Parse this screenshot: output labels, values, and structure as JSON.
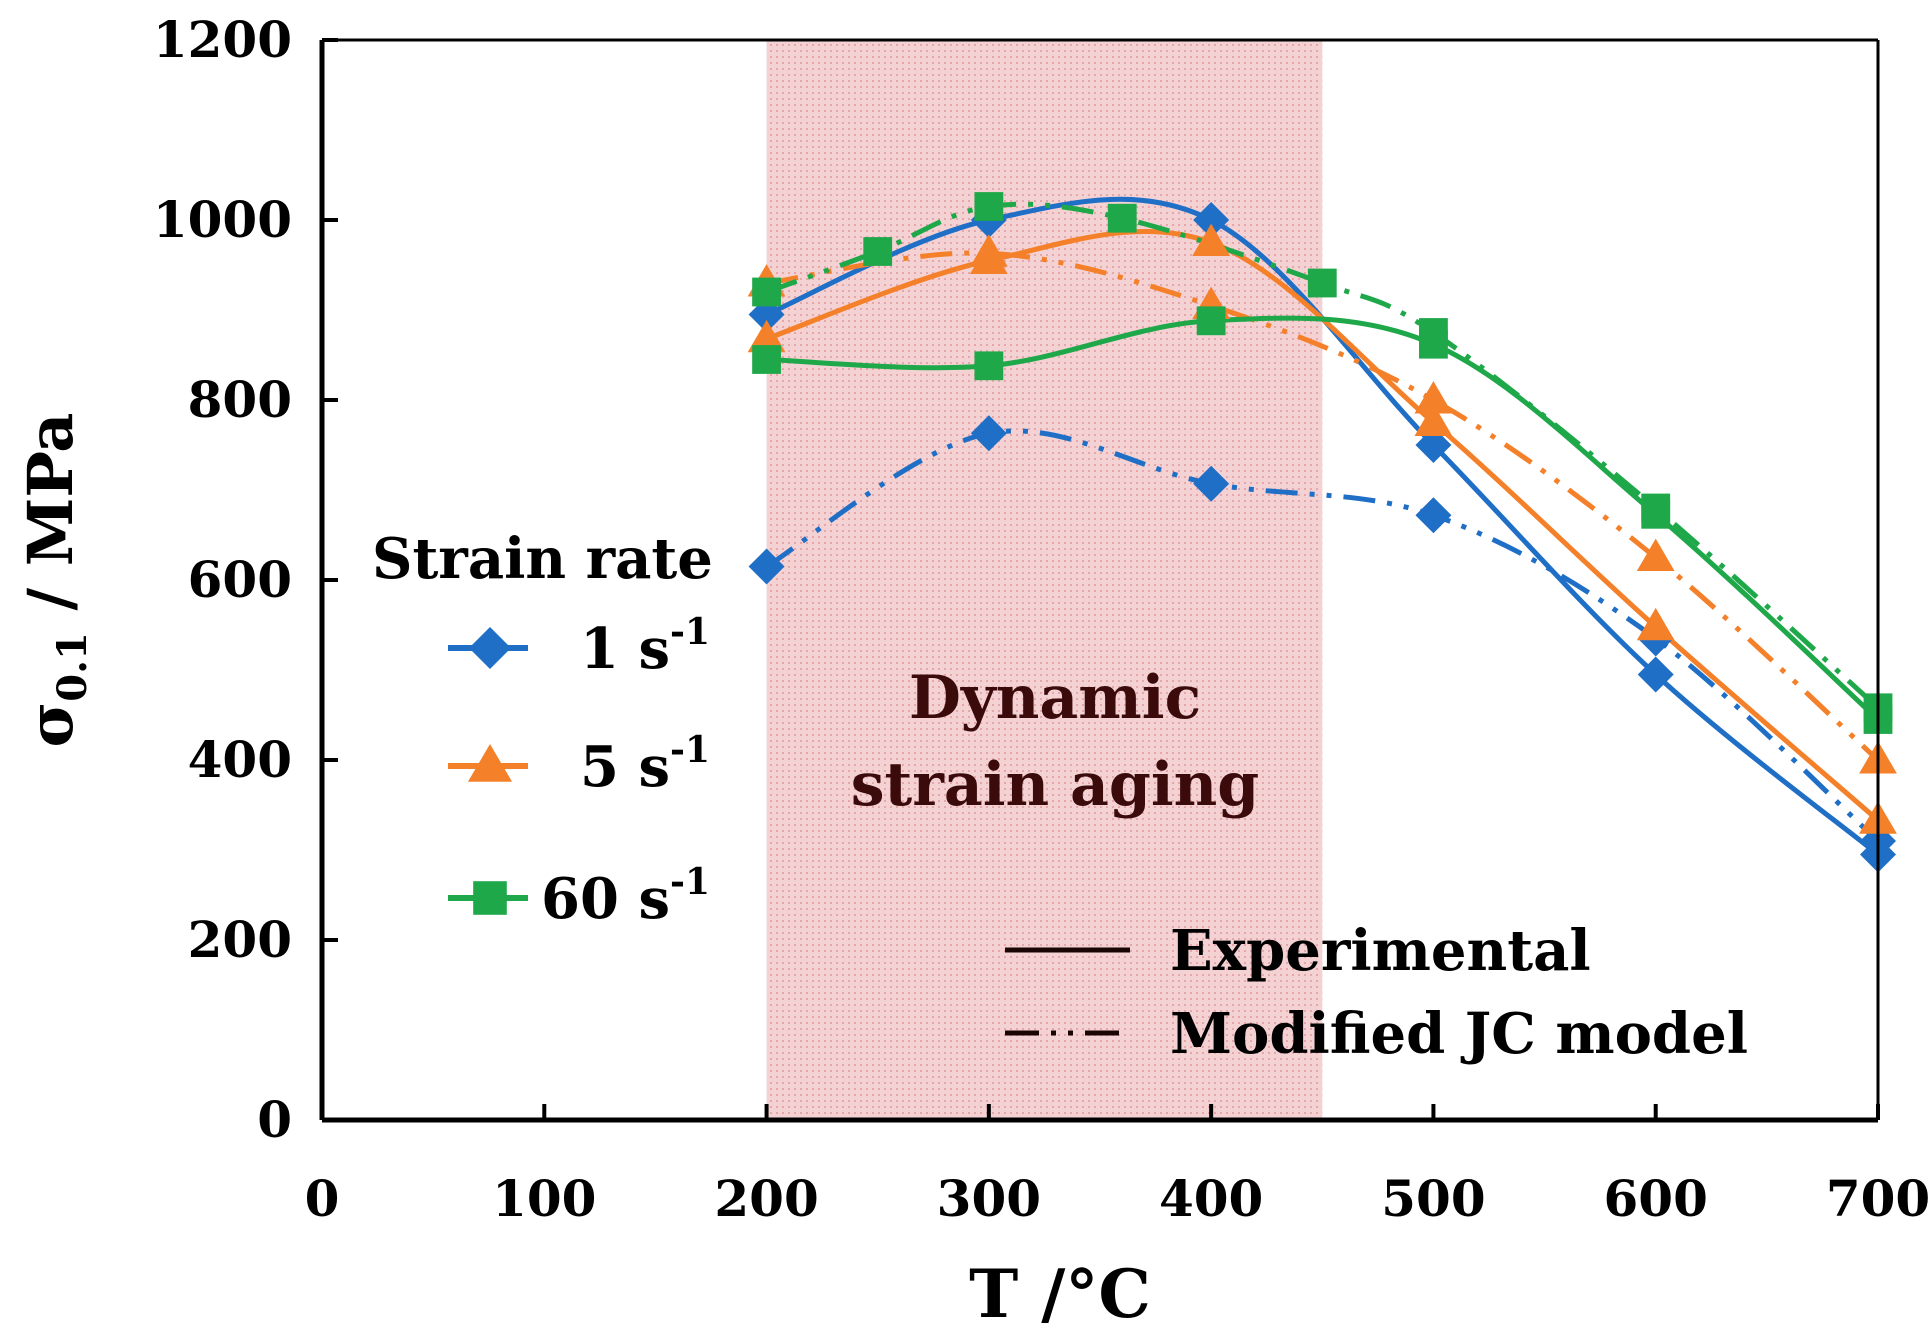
{
  "chart_data": {
    "type": "line",
    "title": "",
    "xlabel": "T /°C",
    "ylabel_main": "σ",
    "ylabel_sub": "0.1",
    "ylabel_rest": " / MPa",
    "xlim": [
      0,
      700
    ],
    "ylim": [
      0,
      1200
    ],
    "x_ticks": [
      0,
      100,
      200,
      300,
      400,
      500,
      600,
      700
    ],
    "y_ticks": [
      0,
      200,
      400,
      600,
      800,
      1000,
      1200
    ],
    "grid": false,
    "shaded_region": {
      "x_range": [
        200,
        450
      ],
      "label_line1": "Dynamic",
      "label_line2": "strain aging",
      "color": "#f2c6c8"
    },
    "legend_title": "Strain rate",
    "style_legend": {
      "solid_label": "Experimental",
      "dashed_label": "Modified JC model"
    },
    "series": [
      {
        "name": "1 s-1",
        "label_main": "1 s",
        "label_sup": "-1",
        "marker": "diamond",
        "color": "#1f6fc6",
        "experimental": {
          "x": [
            200,
            300,
            400,
            500,
            600,
            700
          ],
          "y": [
            895,
            1000,
            1000,
            750,
            495,
            295
          ]
        },
        "model": {
          "x": [
            200,
            300,
            400,
            500,
            600,
            700
          ],
          "y": [
            615,
            763,
            707,
            672,
            535,
            310
          ]
        }
      },
      {
        "name": "5 s-1",
        "label_main": "5 s",
        "label_sup": "-1",
        "marker": "triangle",
        "color": "#f4802a",
        "experimental": {
          "x": [
            200,
            300,
            400,
            500,
            600,
            700
          ],
          "y": [
            868,
            955,
            975,
            775,
            548,
            333
          ]
        },
        "model": {
          "x": [
            200,
            300,
            400,
            500,
            600,
            700
          ],
          "y": [
            930,
            963,
            905,
            800,
            625,
            400
          ]
        }
      },
      {
        "name": "60 s-1",
        "label_main": "60 s",
        "label_sup": "-1",
        "marker": "square",
        "color": "#1fa84a",
        "experimental": {
          "x": [
            200,
            300,
            400,
            500,
            600,
            700
          ],
          "y": [
            845,
            838,
            888,
            862,
            673,
            445
          ]
        },
        "model": {
          "x": [
            200,
            250,
            300,
            360,
            450,
            500,
            600,
            700
          ],
          "y": [
            920,
            965,
            1015,
            1002,
            930,
            875,
            680,
            458
          ]
        }
      }
    ]
  }
}
